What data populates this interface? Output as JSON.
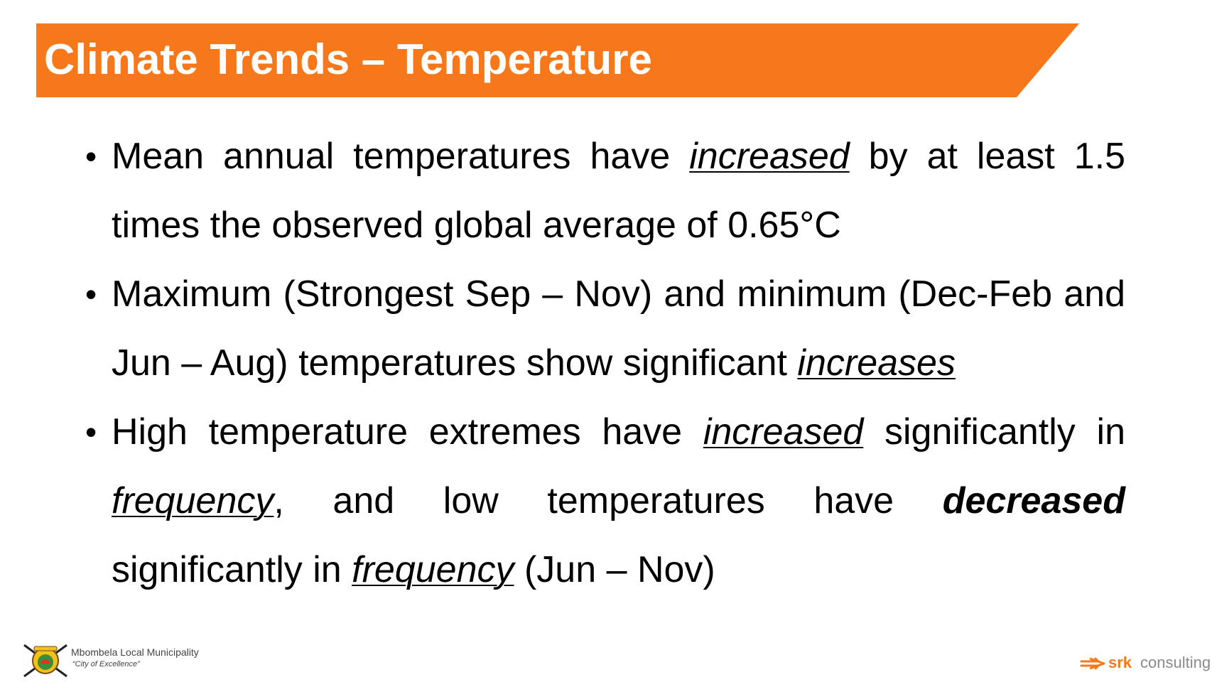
{
  "slide": {
    "title": "Climate Trends – Temperature",
    "accent_color": "#F7781A",
    "bullet_glyph": "•",
    "bullets": [
      {
        "t1": "Mean annual temperatures have ",
        "e1": "increased",
        "t2": " by at least 1.5 times the observed global average of 0.65°C"
      },
      {
        "t1": "Maximum (Strongest Sep – Nov) and minimum (Dec-Feb and Jun – Aug) temperatures show significant ",
        "e1": "increases"
      },
      {
        "t1": "High temperature extremes have ",
        "e1": "increased",
        "t2": " significantly in ",
        "e2": "frequency",
        "t3": ", and low temperatures have ",
        "s1": "decreased",
        "t4": " significantly in ",
        "e3": "frequency",
        "t5": " (Jun – Nov)"
      }
    ]
  },
  "footer": {
    "municipality": {
      "name": "Mbombela Local Municipality",
      "motto": "“City of Excellence”",
      "logo_icon": "municipal-crest-icon"
    },
    "consultant": {
      "name": "srk",
      "suffix": " consulting",
      "logo_icon": "srk-arrow-icon",
      "brand_color": "#F7781A"
    }
  }
}
